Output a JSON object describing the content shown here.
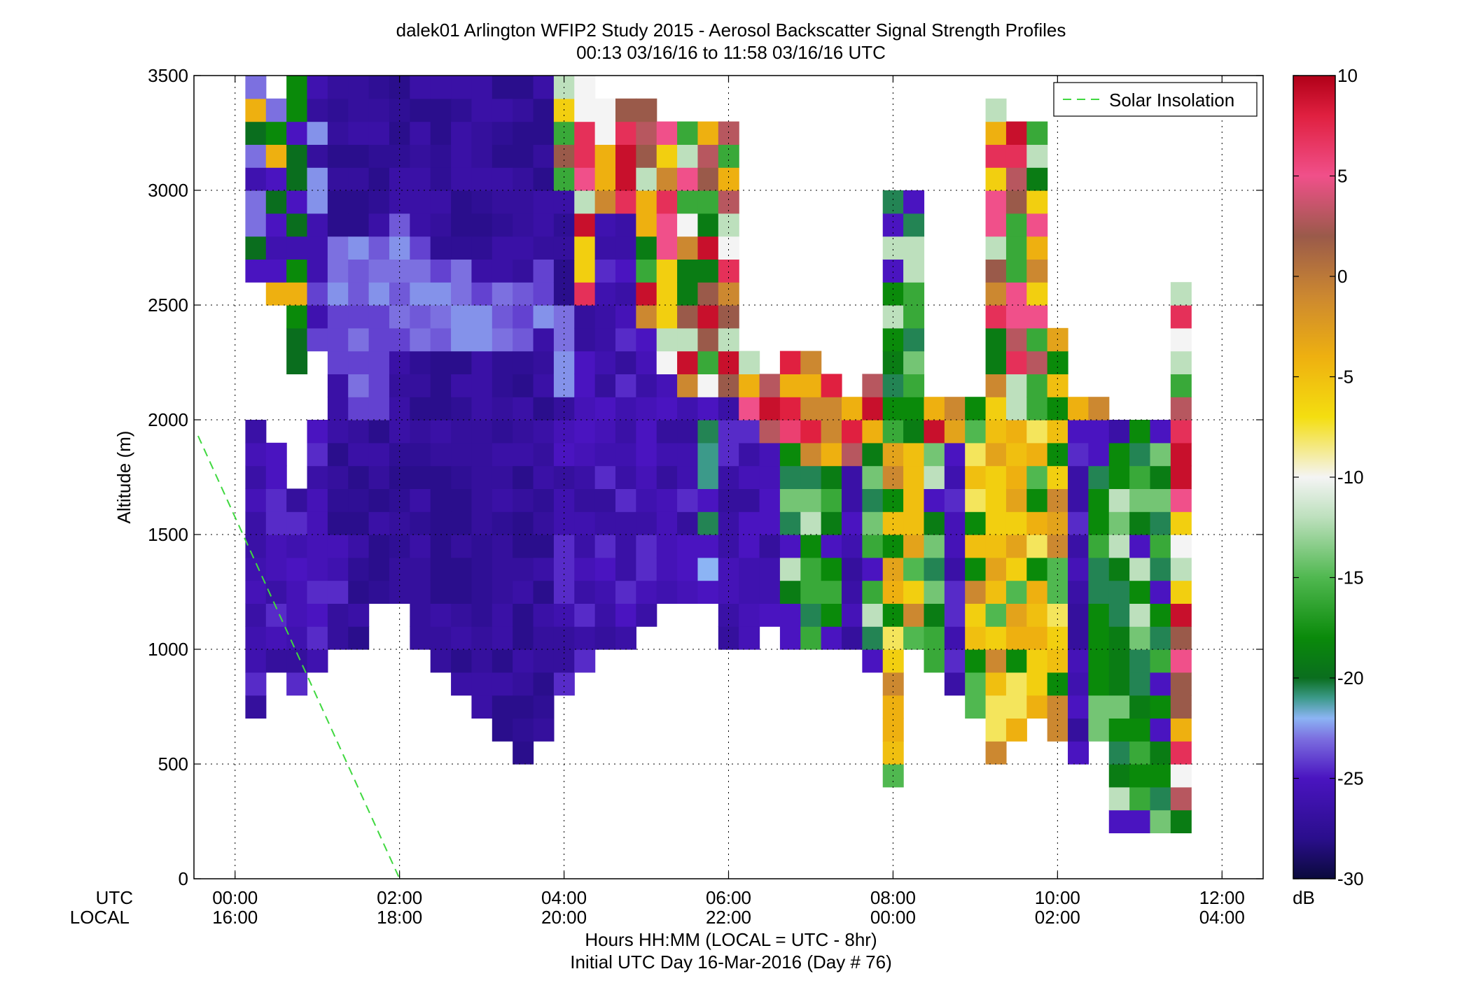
{
  "chart_data": {
    "type": "heatmap",
    "title": "dalek01 Arlington WFIP2 Study 2015 - Aerosol Backscatter Signal Strength Profiles",
    "subtitle": "00:13 03/16/16 to 11:58 03/16/16  UTC",
    "xlabel": "Hours HH:MM  (LOCAL = UTC - 8hr)",
    "xlabel2": "Initial UTC Day 16-Mar-2016 (Day # 76)",
    "ylabel": "Altitude (m)",
    "x_row_labels": [
      "UTC",
      "LOCAL"
    ],
    "xlim_hours": [
      -0.5,
      12.5
    ],
    "ylim": [
      0,
      3500
    ],
    "x_ticks": [
      {
        "hour": 0,
        "utc": "00:00",
        "local": "16:00"
      },
      {
        "hour": 2,
        "utc": "02:00",
        "local": "18:00"
      },
      {
        "hour": 4,
        "utc": "04:00",
        "local": "20:00"
      },
      {
        "hour": 6,
        "utc": "06:00",
        "local": "22:00"
      },
      {
        "hour": 8,
        "utc": "08:00",
        "local": "00:00"
      },
      {
        "hour": 10,
        "utc": "10:00",
        "local": "02:00"
      },
      {
        "hour": 12,
        "utc": "12:00",
        "local": "04:00"
      }
    ],
    "y_ticks": [
      0,
      500,
      1000,
      1500,
      2000,
      2500,
      3000,
      3500
    ],
    "grid": true,
    "colorbar": {
      "label": "dB",
      "min": -30,
      "max": 10,
      "ticks": [
        10,
        5,
        0,
        -5,
        -10,
        -15,
        -20,
        -25,
        -30
      ],
      "stops": [
        {
          "v": -30,
          "c": "#0a0a3c"
        },
        {
          "v": -28,
          "c": "#2a0e8c"
        },
        {
          "v": -25,
          "c": "#4a14c0"
        },
        {
          "v": -23,
          "c": "#7c70e0"
        },
        {
          "v": -22,
          "c": "#8cb4f4"
        },
        {
          "v": -21,
          "c": "#3c9a8a"
        },
        {
          "v": -20,
          "c": "#0a6e1e"
        },
        {
          "v": -18,
          "c": "#0a8a0a"
        },
        {
          "v": -15,
          "c": "#50b850"
        },
        {
          "v": -12,
          "c": "#bde0bd"
        },
        {
          "v": -10,
          "c": "#f4f4f4"
        },
        {
          "v": -7,
          "c": "#f4de10"
        },
        {
          "v": -4,
          "c": "#eeb010"
        },
        {
          "v": -1,
          "c": "#cc8830"
        },
        {
          "v": 2,
          "c": "#9a5a4a"
        },
        {
          "v": 5,
          "c": "#f0508a"
        },
        {
          "v": 8,
          "c": "#e02040"
        },
        {
          "v": 10,
          "c": "#b00018"
        }
      ]
    },
    "legend": {
      "position": "top-right",
      "entries": [
        {
          "name": "Solar Insolation",
          "style": "dashed",
          "color": "#40d840"
        }
      ]
    },
    "solar_insolation": {
      "x_hours": [
        -0.45,
        2.0
      ],
      "y": [
        1930,
        0
      ]
    },
    "grid_info": {
      "time_step_hours": 0.25,
      "alt_step_m": 100
    },
    "columns": [
      {
        "t": 0.25,
        "segs": [
          [
            1,
            "700-2000",
            "p"
          ],
          [
            1,
            "2600-3500",
            "a"
          ]
        ]
      },
      {
        "t": 0.5,
        "segs": [
          [
            1,
            "900-1900",
            "p"
          ],
          [
            1,
            "2500-3400",
            "a"
          ]
        ]
      },
      {
        "t": 0.75,
        "segs": [
          [
            1,
            "800-1700",
            "p"
          ],
          [
            1,
            "2200-3500",
            "a"
          ]
        ]
      },
      {
        "t": 1.0,
        "segs": [
          [
            1,
            "900-2000",
            "p"
          ],
          [
            1,
            "2300-3500",
            "b"
          ]
        ]
      },
      {
        "t": 1.25,
        "segs": [
          [
            1,
            "1000-1500",
            "p"
          ],
          [
            1,
            "1500-2200",
            "d"
          ],
          [
            1,
            "2200-2800",
            "l"
          ],
          [
            1,
            "2800-3500",
            "d"
          ]
        ]
      },
      {
        "t": 1.5,
        "segs": [
          [
            1,
            "1000-2000",
            "d"
          ],
          [
            1,
            "2000-2800",
            "l"
          ],
          [
            1,
            "2800-3500",
            "d"
          ]
        ]
      },
      {
        "t": 1.75,
        "segs": [
          [
            1,
            "1200-2000",
            "d"
          ],
          [
            1,
            "2000-2800",
            "l"
          ],
          [
            1,
            "2800-3500",
            "d"
          ]
        ]
      },
      {
        "t": 2.0,
        "segs": [
          [
            1,
            "1200-2300",
            "d"
          ],
          [
            1,
            "2300-2900",
            "l"
          ],
          [
            1,
            "2900-3500",
            "d"
          ]
        ]
      },
      {
        "t": 2.25,
        "segs": [
          [
            1,
            "1000-2300",
            "d"
          ],
          [
            1,
            "2300-2800",
            "l"
          ],
          [
            1,
            "2800-3500",
            "d"
          ]
        ]
      },
      {
        "t": 2.5,
        "segs": [
          [
            1,
            "900-2300",
            "d"
          ],
          [
            1,
            "2300-2700",
            "l"
          ],
          [
            1,
            "2700-3500",
            "d"
          ]
        ]
      },
      {
        "t": 2.75,
        "segs": [
          [
            1,
            "800-2300",
            "d"
          ],
          [
            1,
            "2300-2700",
            "l"
          ],
          [
            1,
            "2700-3500",
            "d"
          ]
        ]
      },
      {
        "t": 3.0,
        "segs": [
          [
            1,
            "700-2300",
            "d"
          ],
          [
            1,
            "2300-2600",
            "l"
          ],
          [
            1,
            "2600-3500",
            "d"
          ]
        ]
      },
      {
        "t": 3.25,
        "segs": [
          [
            1,
            "600-2300",
            "d"
          ],
          [
            1,
            "2300-2600",
            "l"
          ],
          [
            1,
            "2600-3500",
            "d"
          ]
        ]
      },
      {
        "t": 3.5,
        "segs": [
          [
            1,
            "500-2300",
            "d"
          ],
          [
            1,
            "2300-2600",
            "l"
          ],
          [
            1,
            "2600-3500",
            "d"
          ]
        ]
      },
      {
        "t": 3.75,
        "segs": [
          [
            1,
            "600-2400",
            "d"
          ],
          [
            1,
            "2400-2700",
            "l"
          ],
          [
            1,
            "2700-3500",
            "d"
          ]
        ]
      },
      {
        "t": 4.0,
        "segs": [
          [
            1,
            "800-2100",
            "p"
          ],
          [
            1,
            "2100-2500",
            "l"
          ],
          [
            1,
            "2500-3000",
            "d"
          ],
          [
            1,
            "3000-3500",
            "mix"
          ]
        ]
      },
      {
        "t": 4.25,
        "segs": [
          [
            1,
            "900-2100",
            "p"
          ],
          [
            1,
            "2100-2500",
            "p"
          ],
          [
            1,
            "2500-3500",
            "mix"
          ]
        ]
      },
      {
        "t": 4.5,
        "segs": [
          [
            1,
            "1000-2300",
            "p"
          ],
          [
            1,
            "2300-2900",
            "p"
          ],
          [
            1,
            "2900-3400",
            "mix"
          ]
        ]
      },
      {
        "t": 4.75,
        "segs": [
          [
            1,
            "1000-2400",
            "p"
          ],
          [
            1,
            "2400-2900",
            "p"
          ],
          [
            1,
            "2900-3400",
            "mix"
          ]
        ]
      },
      {
        "t": 5.0,
        "segs": [
          [
            1,
            "1100-2400",
            "p"
          ],
          [
            1,
            "2400-3400",
            "mix"
          ]
        ]
      },
      {
        "t": 5.25,
        "segs": [
          [
            1,
            "1200-2200",
            "p"
          ],
          [
            1,
            "2200-3300",
            "mix"
          ]
        ]
      },
      {
        "t": 5.5,
        "segs": [
          [
            1,
            "1200-2100",
            "p"
          ],
          [
            1,
            "2100-3300",
            "mix"
          ]
        ]
      },
      {
        "t": 5.75,
        "segs": [
          [
            1,
            "1200-2100",
            "t"
          ],
          [
            1,
            "2100-3300",
            "mix"
          ]
        ]
      },
      {
        "t": 6.0,
        "segs": [
          [
            1,
            "1000-2100",
            "p"
          ],
          [
            1,
            "2100-3300",
            "mix"
          ]
        ]
      },
      {
        "t": 6.25,
        "segs": [
          [
            1,
            "1000-2000",
            "p"
          ],
          [
            1,
            "2000-2300",
            "mix"
          ]
        ]
      },
      {
        "t": 6.5,
        "segs": [
          [
            1,
            "1100-1900",
            "p"
          ],
          [
            1,
            "1900-2200",
            "r"
          ]
        ]
      },
      {
        "t": 6.75,
        "segs": [
          [
            1,
            "1000-1900",
            "g"
          ],
          [
            1,
            "1900-2300",
            "r"
          ]
        ]
      },
      {
        "t": 7.0,
        "segs": [
          [
            1,
            "1000-1800",
            "g"
          ],
          [
            1,
            "1800-2300",
            "r"
          ]
        ]
      },
      {
        "t": 7.25,
        "segs": [
          [
            1,
            "1000-1800",
            "g"
          ],
          [
            1,
            "1800-2200",
            "r"
          ]
        ]
      },
      {
        "t": 7.5,
        "segs": [
          [
            1,
            "1000-1800",
            "p"
          ],
          [
            1,
            "1800-2100",
            "r"
          ]
        ]
      },
      {
        "t": 7.75,
        "segs": [
          [
            1,
            "900-1900",
            "g"
          ],
          [
            1,
            "1900-2200",
            "r"
          ]
        ]
      },
      {
        "t": 8.0,
        "segs": [
          [
            1,
            "400-1900",
            "y"
          ],
          [
            1,
            "1900-3000",
            "g"
          ]
        ]
      },
      {
        "t": 8.25,
        "segs": [
          [
            1,
            "1000-1900",
            "y"
          ],
          [
            1,
            "1900-3000",
            "g"
          ]
        ]
      },
      {
        "t": 8.5,
        "segs": [
          [
            1,
            "900-1900",
            "g"
          ],
          [
            1,
            "1900-2100",
            "r"
          ]
        ]
      },
      {
        "t": 8.75,
        "segs": [
          [
            1,
            "800-1900",
            "p"
          ],
          [
            1,
            "1900-2100",
            "y"
          ]
        ]
      },
      {
        "t": 9.0,
        "segs": [
          [
            1,
            "700-1900",
            "y"
          ],
          [
            1,
            "1900-2100",
            "y"
          ]
        ]
      },
      {
        "t": 9.25,
        "segs": [
          [
            1,
            "500-2000",
            "y"
          ],
          [
            1,
            "2000-3400",
            "mix"
          ]
        ]
      },
      {
        "t": 9.5,
        "segs": [
          [
            1,
            "600-2000",
            "y"
          ],
          [
            1,
            "2000-3300",
            "mix"
          ]
        ]
      },
      {
        "t": 9.75,
        "segs": [
          [
            1,
            "700-2000",
            "y"
          ],
          [
            1,
            "2000-3300",
            "mix"
          ]
        ]
      },
      {
        "t": 10.0,
        "segs": [
          [
            1,
            "600-2000",
            "y"
          ],
          [
            1,
            "2000-2400",
            "y"
          ]
        ]
      },
      {
        "t": 10.25,
        "segs": [
          [
            1,
            "500-2000",
            "p"
          ],
          [
            1,
            "2000-2100",
            "r"
          ]
        ]
      },
      {
        "t": 10.5,
        "segs": [
          [
            1,
            "600-2000",
            "g"
          ],
          [
            1,
            "2000-2100",
            "r"
          ]
        ]
      },
      {
        "t": 10.75,
        "segs": [
          [
            1,
            "200-1900",
            "g"
          ],
          [
            1,
            "1900-2000",
            "p"
          ]
        ]
      },
      {
        "t": 11.0,
        "segs": [
          [
            1,
            "200-1900",
            "g"
          ],
          [
            1,
            "1900-2000",
            "g"
          ]
        ]
      },
      {
        "t": 11.25,
        "segs": [
          [
            1,
            "200-1900",
            "g"
          ],
          [
            1,
            "1900-2000",
            "g"
          ]
        ]
      },
      {
        "t": 11.5,
        "segs": [
          [
            1,
            "200-2600",
            "mix"
          ]
        ]
      }
    ]
  }
}
